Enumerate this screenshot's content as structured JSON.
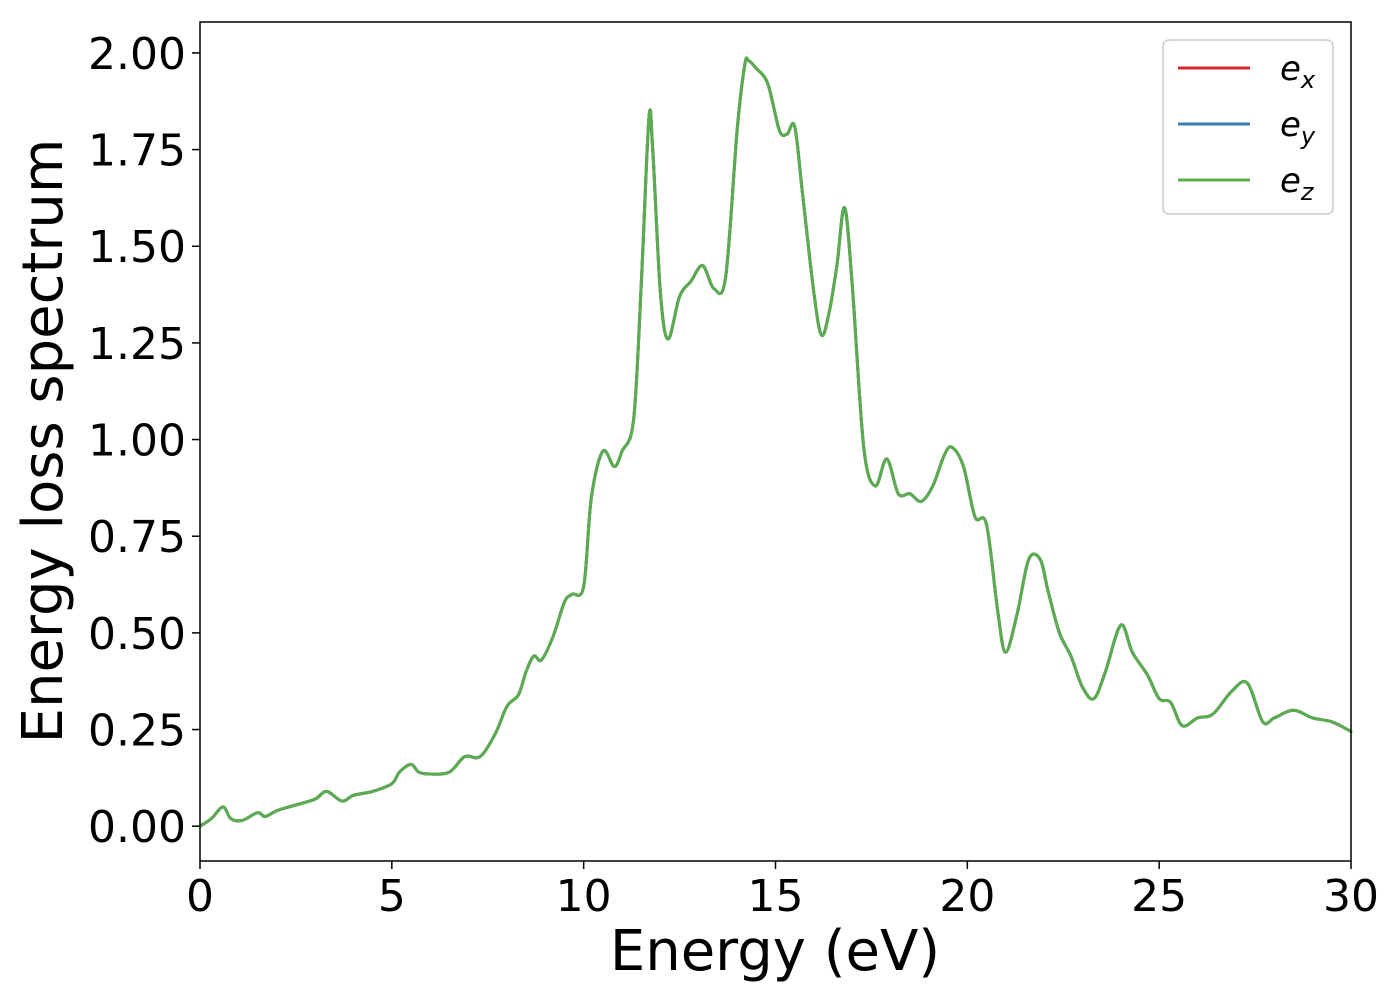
{
  "chart_data": {
    "type": "line",
    "title": "",
    "xlabel": "Energy (eV)",
    "ylabel": "Energy loss spectrum",
    "xlim": [
      0,
      30
    ],
    "ylim": [
      -0.09,
      2.08
    ],
    "xticks": [
      0,
      5,
      10,
      15,
      20,
      25,
      30
    ],
    "xtick_labels": [
      "0",
      "5",
      "10",
      "15",
      "20",
      "25",
      "30"
    ],
    "yticks": [
      0.0,
      0.25,
      0.5,
      0.75,
      1.0,
      1.25,
      1.5,
      1.75,
      2.0
    ],
    "ytick_labels": [
      "0.00",
      "0.25",
      "0.50",
      "0.75",
      "1.00",
      "1.25",
      "1.50",
      "1.75",
      "2.00"
    ],
    "grid": false,
    "legend_position": "top-right",
    "x": [
      0,
      0.3,
      0.6,
      0.8,
      1.1,
      1.5,
      1.7,
      2.0,
      2.5,
      3.0,
      3.3,
      3.7,
      4.0,
      4.5,
      5.0,
      5.2,
      5.5,
      5.7,
      6.0,
      6.5,
      6.9,
      7.3,
      7.7,
      8.0,
      8.3,
      8.5,
      8.7,
      8.9,
      9.2,
      9.5,
      9.7,
      10.0,
      10.2,
      10.5,
      10.8,
      11.0,
      11.3,
      11.5,
      11.7,
      11.8,
      12.0,
      12.2,
      12.5,
      12.8,
      13.1,
      13.4,
      13.7,
      14.0,
      14.2,
      14.3,
      14.5,
      14.8,
      15.1,
      15.3,
      15.5,
      15.7,
      16.0,
      16.2,
      16.4,
      16.6,
      16.8,
      17.0,
      17.3,
      17.6,
      17.9,
      18.2,
      18.5,
      18.8,
      19.1,
      19.4,
      19.6,
      19.9,
      20.2,
      20.5,
      20.8,
      21.0,
      21.3,
      21.6,
      21.9,
      22.1,
      22.4,
      22.7,
      23.0,
      23.3,
      23.6,
      24.0,
      24.3,
      24.7,
      25.0,
      25.3,
      25.6,
      26.0,
      26.4,
      26.9,
      27.3,
      27.7,
      28.0,
      28.5,
      29.0,
      29.5,
      30.0
    ],
    "y_shared": [
      0.0,
      0.02,
      0.05,
      0.02,
      0.015,
      0.035,
      0.025,
      0.04,
      0.055,
      0.07,
      0.09,
      0.065,
      0.08,
      0.09,
      0.11,
      0.14,
      0.16,
      0.14,
      0.135,
      0.14,
      0.18,
      0.18,
      0.24,
      0.31,
      0.34,
      0.4,
      0.44,
      0.43,
      0.49,
      0.58,
      0.6,
      0.62,
      0.85,
      0.97,
      0.93,
      0.97,
      1.05,
      1.4,
      1.83,
      1.75,
      1.38,
      1.26,
      1.37,
      1.41,
      1.45,
      1.39,
      1.42,
      1.8,
      1.97,
      1.98,
      1.96,
      1.92,
      1.8,
      1.79,
      1.81,
      1.64,
      1.38,
      1.27,
      1.33,
      1.45,
      1.6,
      1.4,
      0.98,
      0.88,
      0.95,
      0.86,
      0.86,
      0.84,
      0.88,
      0.96,
      0.98,
      0.93,
      0.8,
      0.78,
      0.55,
      0.45,
      0.55,
      0.69,
      0.69,
      0.61,
      0.5,
      0.44,
      0.36,
      0.33,
      0.4,
      0.52,
      0.45,
      0.39,
      0.33,
      0.32,
      0.26,
      0.28,
      0.29,
      0.35,
      0.37,
      0.27,
      0.28,
      0.3,
      0.28,
      0.27,
      0.245
    ],
    "series": [
      {
        "name": "e_x",
        "label_base": "e",
        "label_sub": "x",
        "color": "#d62728"
      },
      {
        "name": "e_y",
        "label_base": "e",
        "label_sub": "y",
        "color": "#3a7eb8"
      },
      {
        "name": "e_z",
        "label_base": "e",
        "label_sub": "z",
        "color": "#5aad4e"
      }
    ]
  }
}
